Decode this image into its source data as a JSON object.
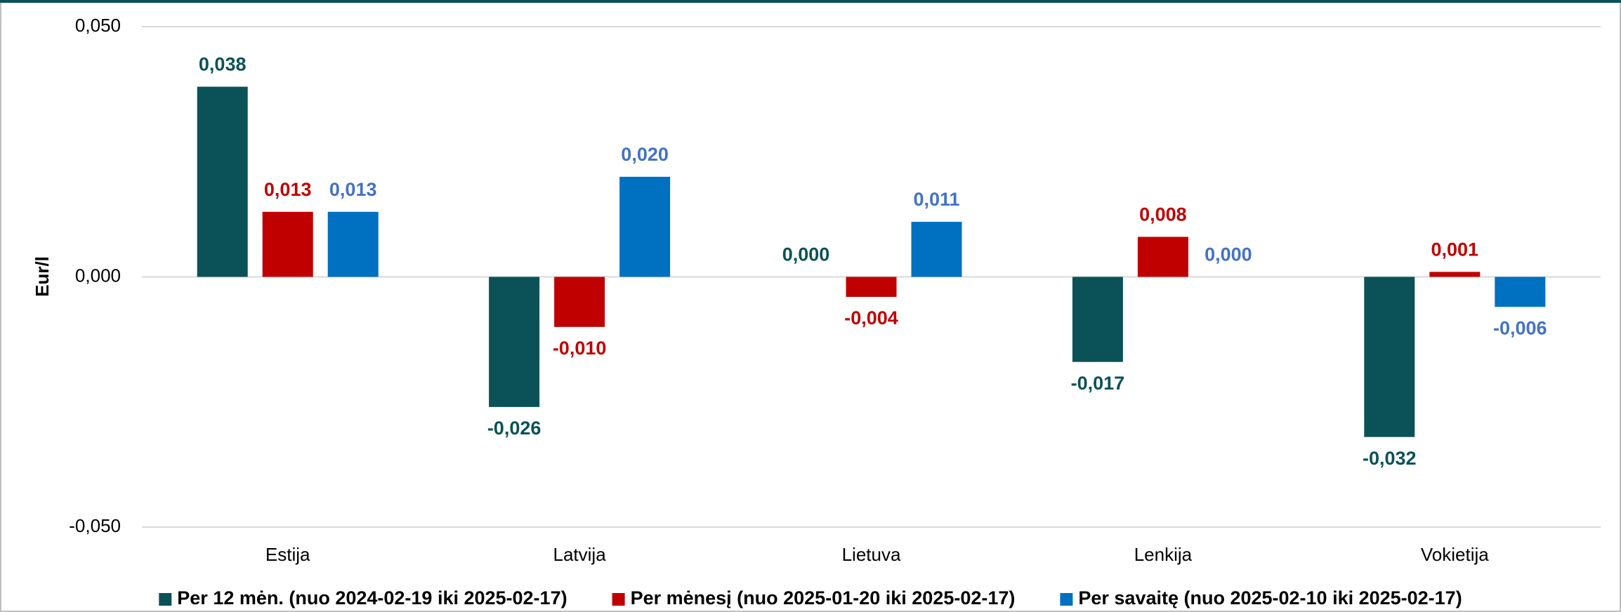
{
  "chart_data": {
    "type": "bar",
    "y_label": "Eur/l",
    "categories": [
      "Estija",
      "Latvija",
      "Lietuva",
      "Lenkija",
      "Vokietija"
    ],
    "series": [
      {
        "name": "Per 12 mėn. (nuo 2024-02-19 iki 2025-02-17)",
        "color": "#0a5257",
        "label_color": "#0a5257",
        "values": [
          0.038,
          -0.026,
          0.0,
          -0.017,
          -0.032
        ],
        "value_labels": [
          "0,038",
          "-0,026",
          "0,000",
          "-0,017",
          "-0,032"
        ]
      },
      {
        "name": "Per mėnesį (nuo 2025-01-20 iki 2025-02-17)",
        "color": "#c00000",
        "label_color": "#c00000",
        "values": [
          0.013,
          -0.01,
          -0.004,
          0.008,
          0.001
        ],
        "value_labels": [
          "0,013",
          "-0,010",
          "-0,004",
          "0,008",
          "0,001"
        ]
      },
      {
        "name": "Per savaitę (nuo 2025-02-10 iki 2025-02-17)",
        "color": "#0070c0",
        "label_color": "#4472c4",
        "values": [
          0.013,
          0.02,
          0.011,
          0.0,
          -0.006
        ],
        "value_labels": [
          "0,013",
          "0,020",
          "0,011",
          "0,000",
          "-0,006"
        ]
      }
    ],
    "ylim": [
      -0.05,
      0.05
    ],
    "yticks": [
      {
        "value": -0.05,
        "label": "-0,050"
      },
      {
        "value": 0,
        "label": "0,000"
      },
      {
        "value": 0.05,
        "label": "0,050"
      }
    ],
    "grid": true
  }
}
